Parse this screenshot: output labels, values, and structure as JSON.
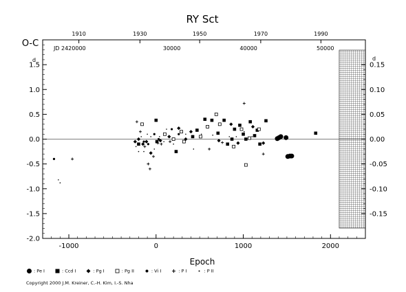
{
  "chart_data": {
    "type": "scatter",
    "title": "RY Sct",
    "xlabel": "Epoch",
    "ylabel": "O-C",
    "xlim": [
      -1300,
      2400
    ],
    "ylim": [
      -2.0,
      2.0
    ],
    "x_ticks": [
      -1000,
      0,
      1000,
      2000
    ],
    "y_ticks": [
      -2.0,
      -1.5,
      -1.0,
      -0.5,
      0.0,
      0.5,
      1.0,
      1.5
    ],
    "y_tick_labels": [
      "-2.0",
      "-1.5",
      "-1.0",
      "-0.5",
      "0.0",
      "0.5",
      "1.0",
      "1.5"
    ],
    "right_axis": {
      "ticks": [
        -0.15,
        -0.1,
        -0.05,
        0.0,
        0.05,
        0.1,
        0.15
      ],
      "tick_labels": [
        "-0.15",
        "-0.10",
        "-0.05",
        "0.00",
        "0.05",
        "0.10",
        "0.15"
      ],
      "corner_label": "d"
    },
    "left_corner_label": "d",
    "top_axis": {
      "years": [
        {
          "label": "1910",
          "x": -885
        },
        {
          "label": "1930",
          "x": -185
        },
        {
          "label": "1950",
          "x": 500
        },
        {
          "label": "1970",
          "x": 1200
        },
        {
          "label": "1990",
          "x": 1890
        }
      ],
      "jd": [
        {
          "label": "JD 2420000",
          "x": -990
        },
        {
          "label": "30000",
          "x": 180
        },
        {
          "label": "40000",
          "x": 1060
        },
        {
          "label": "50000",
          "x": 1940
        }
      ]
    },
    "future_region_x": [
      2100,
      2400
    ],
    "zero_line": true,
    "grid": false,
    "legend_position": "bottom",
    "series": [
      {
        "name": "Pe I",
        "marker": "large-dot",
        "points": [
          [
            1390,
            0.01
          ],
          [
            1410,
            0.03
          ],
          [
            1430,
            0.05
          ],
          [
            1490,
            0.03
          ],
          [
            1510,
            -0.35
          ],
          [
            1535,
            -0.34
          ],
          [
            1555,
            -0.34
          ]
        ]
      },
      {
        "name": "Ccd I",
        "marker": "filled-square",
        "points": [
          [
            -200,
            -0.1
          ],
          [
            0,
            0.38
          ],
          [
            10,
            -0.05
          ],
          [
            230,
            -0.25
          ],
          [
            420,
            0.05
          ],
          [
            470,
            0.18
          ],
          [
            560,
            0.4
          ],
          [
            640,
            0.38
          ],
          [
            710,
            0.12
          ],
          [
            780,
            0.38
          ],
          [
            820,
            -0.1
          ],
          [
            870,
            0.0
          ],
          [
            900,
            0.2
          ],
          [
            960,
            0.28
          ],
          [
            1000,
            0.1
          ],
          [
            1030,
            0.0
          ],
          [
            1080,
            0.35
          ],
          [
            1130,
            0.07
          ],
          [
            1160,
            0.18
          ],
          [
            1190,
            -0.1
          ],
          [
            1260,
            0.37
          ],
          [
            1830,
            0.12
          ]
        ]
      },
      {
        "name": "Pg I",
        "marker": "filled-diamond",
        "points": [
          [
            -240,
            -0.05
          ],
          [
            -200,
            0.0
          ],
          [
            -150,
            -0.1
          ],
          [
            -110,
            -0.05
          ],
          [
            -60,
            -0.28
          ],
          [
            50,
            -0.03
          ],
          [
            150,
            0.05
          ],
          [
            260,
            0.22
          ],
          [
            340,
            0.0
          ],
          [
            400,
            0.15
          ],
          [
            720,
            -0.03
          ],
          [
            860,
            0.3
          ],
          [
            940,
            -0.08
          ],
          [
            1110,
            0.25
          ],
          [
            1230,
            -0.08
          ]
        ]
      },
      {
        "name": "Pg II",
        "marker": "open-square",
        "points": [
          [
            -160,
            0.3
          ],
          [
            100,
            0.1
          ],
          [
            200,
            0.0
          ],
          [
            290,
            0.15
          ],
          [
            320,
            -0.05
          ],
          [
            510,
            0.05
          ],
          [
            590,
            0.25
          ],
          [
            690,
            0.5
          ],
          [
            730,
            0.3
          ],
          [
            890,
            -0.15
          ],
          [
            980,
            0.2
          ],
          [
            1030,
            -0.52
          ],
          [
            1070,
            0.02
          ],
          [
            1180,
            0.2
          ]
        ]
      },
      {
        "name": "Vi I",
        "marker": "small-dot",
        "points": [
          [
            -1170,
            -0.4
          ],
          [
            -140,
            -0.05
          ],
          [
            -90,
            -0.1
          ],
          [
            -20,
            0.1
          ],
          [
            30,
            0.0
          ],
          [
            180,
            0.2
          ],
          [
            260,
            0.1
          ]
        ]
      },
      {
        "name": "P I",
        "marker": "plus",
        "points": [
          [
            -960,
            -0.4
          ],
          [
            -220,
            0.35
          ],
          [
            -180,
            0.15
          ],
          [
            -130,
            -0.15
          ],
          [
            -90,
            -0.5
          ],
          [
            -70,
            -0.6
          ],
          [
            -30,
            -0.35
          ],
          [
            20,
            -0.08
          ],
          [
            60,
            -0.1
          ],
          [
            160,
            -0.05
          ],
          [
            610,
            -0.2
          ],
          [
            760,
            -0.07
          ],
          [
            1010,
            0.72
          ],
          [
            1230,
            -0.3
          ]
        ]
      },
      {
        "name": "P II",
        "marker": "tiny-dot",
        "points": [
          [
            -1120,
            -0.82
          ],
          [
            -1100,
            -0.88
          ],
          [
            -230,
            -0.15
          ],
          [
            -200,
            -0.25
          ],
          [
            -170,
            0.05
          ],
          [
            -140,
            -0.25
          ],
          [
            -100,
            0.1
          ],
          [
            -60,
            0.05
          ],
          [
            -20,
            -0.2
          ],
          [
            40,
            0.05
          ],
          [
            90,
            -0.05
          ],
          [
            120,
            0.2
          ],
          [
            200,
            -0.1
          ],
          [
            340,
            0.1
          ],
          [
            430,
            -0.2
          ],
          [
            520,
            0.1
          ],
          [
            650,
            0.08
          ],
          [
            700,
            0.1
          ],
          [
            840,
            0.05
          ],
          [
            920,
            0.05
          ],
          [
            1010,
            0.15
          ],
          [
            1100,
            0.05
          ]
        ]
      }
    ]
  },
  "legend": [
    {
      "label": ": Pe I",
      "marker": "large-dot"
    },
    {
      "label": ": Ccd I",
      "marker": "filled-square"
    },
    {
      "label": ": Pg I",
      "marker": "filled-diamond"
    },
    {
      "label": ": Pg II",
      "marker": "open-square"
    },
    {
      "label": ": Vi I",
      "marker": "small-dot"
    },
    {
      "label": ": P I",
      "marker": "plus"
    },
    {
      "label": ": P II",
      "marker": "tiny-dot"
    }
  ],
  "copyright": "Copyright 2000 J.M. Kreiner, C.-H. Kim, I.-S. Nha"
}
